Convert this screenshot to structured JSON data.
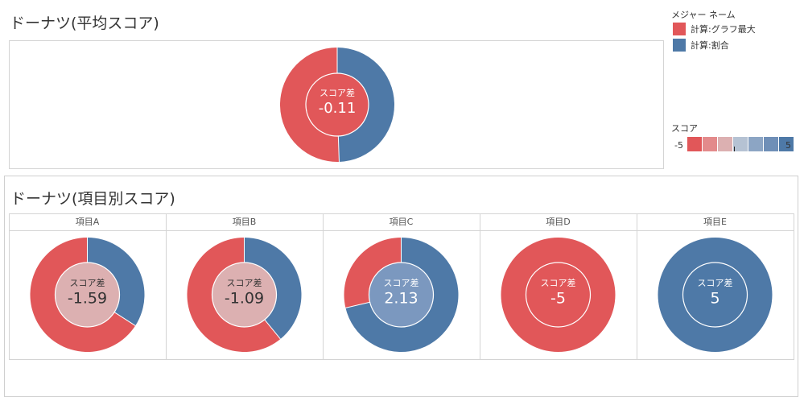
{
  "avg_section": {
    "title": "ドーナツ(平均スコア)"
  },
  "items_section": {
    "title": "ドーナツ(項目別スコア)"
  },
  "legend": {
    "measure_title": "メジャー ネーム",
    "entries": [
      {
        "label": "計算:グラフ最大",
        "color": "#e15759"
      },
      {
        "label": "計算:割合",
        "color": "#4e79a7"
      }
    ],
    "score_title": "スコア",
    "score_min_label": "-5",
    "score_max_label": "5",
    "ramp_colors": [
      "#e15759",
      "#e38a8b",
      "#dcb0b1",
      "#b5c2d3",
      "#8ca5c4",
      "#6f8fb7",
      "#4e79a7"
    ]
  },
  "colors": {
    "red": "#e15759",
    "blue": "#4e79a7"
  },
  "chart_data": [
    {
      "type": "donut",
      "title": "ドーナツ(平均スコア)",
      "center_label": "スコア差",
      "value": -0.11,
      "value_label": "-0.11",
      "slices": [
        {
          "name": "計算:割合",
          "share": 0.4945
        },
        {
          "name": "計算:グラフ最大",
          "share": 0.5055
        }
      ],
      "center_fill": "#e15759"
    },
    {
      "type": "donut",
      "title": "ドーナツ(項目別スコア)",
      "scale_min": -5,
      "scale_max": 5,
      "center_label": "スコア差",
      "categories": [
        "項目A",
        "項目B",
        "項目C",
        "項目D",
        "項目E"
      ],
      "values": [
        -1.59,
        -1.09,
        2.13,
        -5,
        5
      ],
      "value_labels": [
        "-1.59",
        "-1.09",
        "2.13",
        "-5",
        "5"
      ],
      "center_fills": [
        "#dcb0b1",
        "#dcb0b1",
        "#7b98bf",
        "#e15759",
        "#4e79a7"
      ]
    }
  ]
}
